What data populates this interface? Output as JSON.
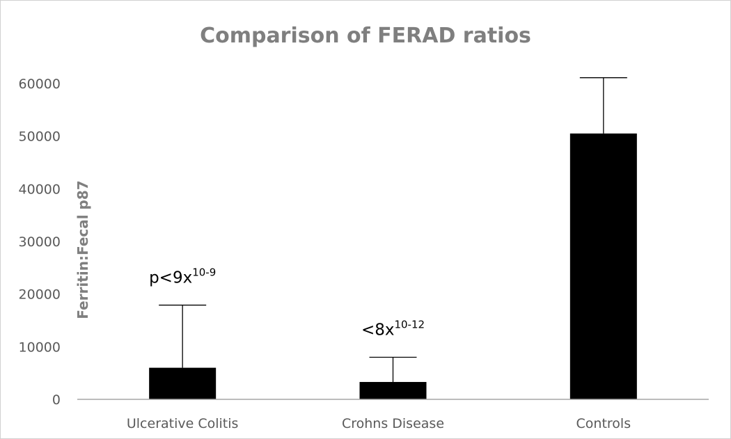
{
  "chart_data": {
    "type": "bar",
    "title": "Comparison of FERAD ratios",
    "xlabel": "",
    "ylabel": "Ferritin:Fecal p87",
    "categories": [
      "Ulcerative Colitis",
      "Crohns Disease",
      "Controls"
    ],
    "values": [
      6000,
      3300,
      50500
    ],
    "error_upper": [
      11900,
      4700,
      10600
    ],
    "ylim": [
      0,
      60000
    ],
    "yticks": [
      0,
      10000,
      20000,
      30000,
      40000,
      50000,
      60000
    ],
    "grid": false,
    "legend": "none",
    "bar_color": "#000000",
    "annotations": [
      {
        "category": "Ulcerative Colitis",
        "base": "p<9x",
        "sup": "10-9"
      },
      {
        "category": "Crohns Disease",
        "base": "<8x",
        "sup": "10-12"
      }
    ]
  }
}
